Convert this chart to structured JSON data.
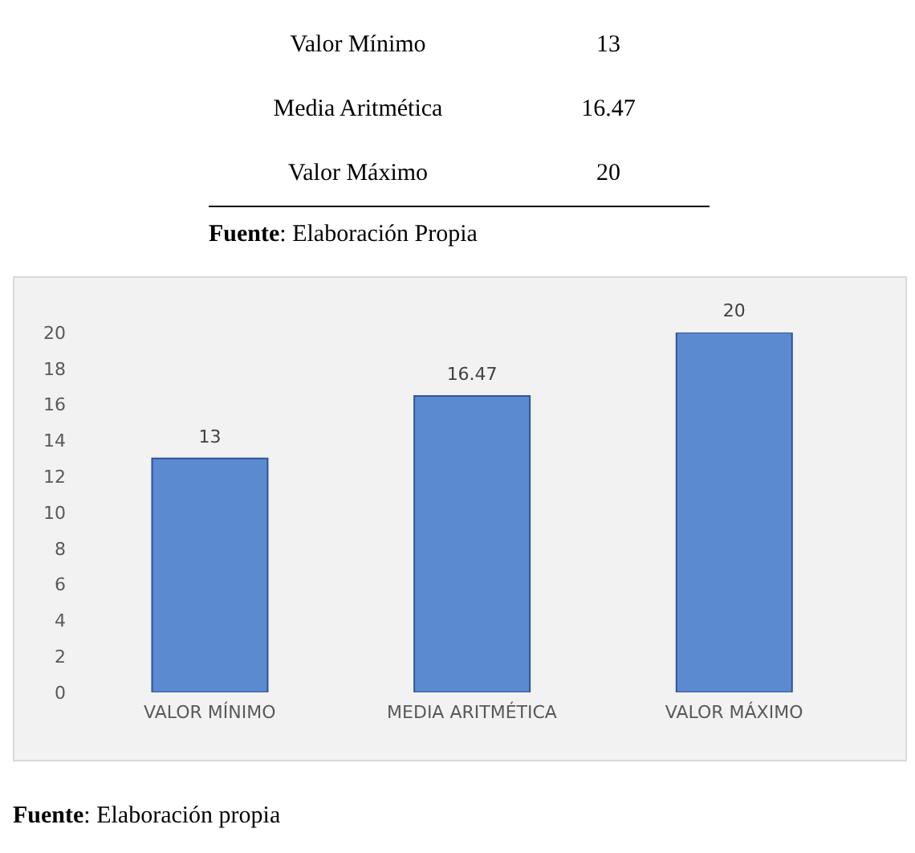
{
  "chart_data": {
    "type": "bar",
    "categories": [
      "VALOR MÍNIMO",
      "MEDIA ARITMÉTICA",
      "VALOR MÁXIMO"
    ],
    "values": [
      13,
      16.47,
      20
    ],
    "color": "#5b8ad0",
    "ylim": [
      0,
      20
    ],
    "yticks": [
      0,
      2,
      4,
      6,
      8,
      10,
      12,
      14,
      16,
      18,
      20
    ],
    "grid": false,
    "data_labels": true,
    "annotations": [
      "Valor Mínimo",
      "13",
      "Media Aritmética",
      "16.47",
      "Valor Máximo",
      "20",
      "Fuente: Elaboración Propia",
      "Fuente: Elaboración propia"
    ]
  }
}
